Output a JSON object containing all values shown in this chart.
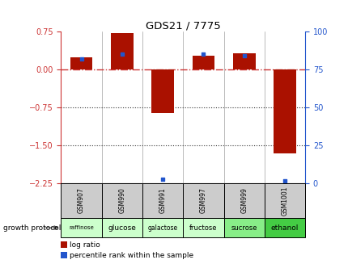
{
  "title": "GDS21 / 7775",
  "samples": [
    "GSM907",
    "GSM990",
    "GSM991",
    "GSM997",
    "GSM999",
    "GSM1001"
  ],
  "protocols": [
    "raffinose",
    "glucose",
    "galactose",
    "fructose",
    "sucrose",
    "ethanol"
  ],
  "log_ratio": [
    0.25,
    0.72,
    -0.85,
    0.27,
    0.32,
    -1.65
  ],
  "percentile_rank": [
    82,
    85,
    3,
    85,
    84,
    2
  ],
  "ylim_left": [
    -2.25,
    0.75
  ],
  "ylim_right": [
    0,
    100
  ],
  "yticks_left": [
    0.75,
    0,
    -0.75,
    -1.5,
    -2.25
  ],
  "yticks_right": [
    100,
    75,
    50,
    25,
    0
  ],
  "bar_color": "#AA1100",
  "dot_color": "#2255CC",
  "zero_line_color": "#CC3333",
  "grid_line_color": "#333333",
  "bg_color": "#FFFFFF",
  "sample_bg": "#CCCCCC",
  "protocol_colors": [
    "#CCFFCC",
    "#CCFFCC",
    "#CCFFCC",
    "#CCFFCC",
    "#88EE88",
    "#44CC44"
  ],
  "bar_width": 0.55
}
